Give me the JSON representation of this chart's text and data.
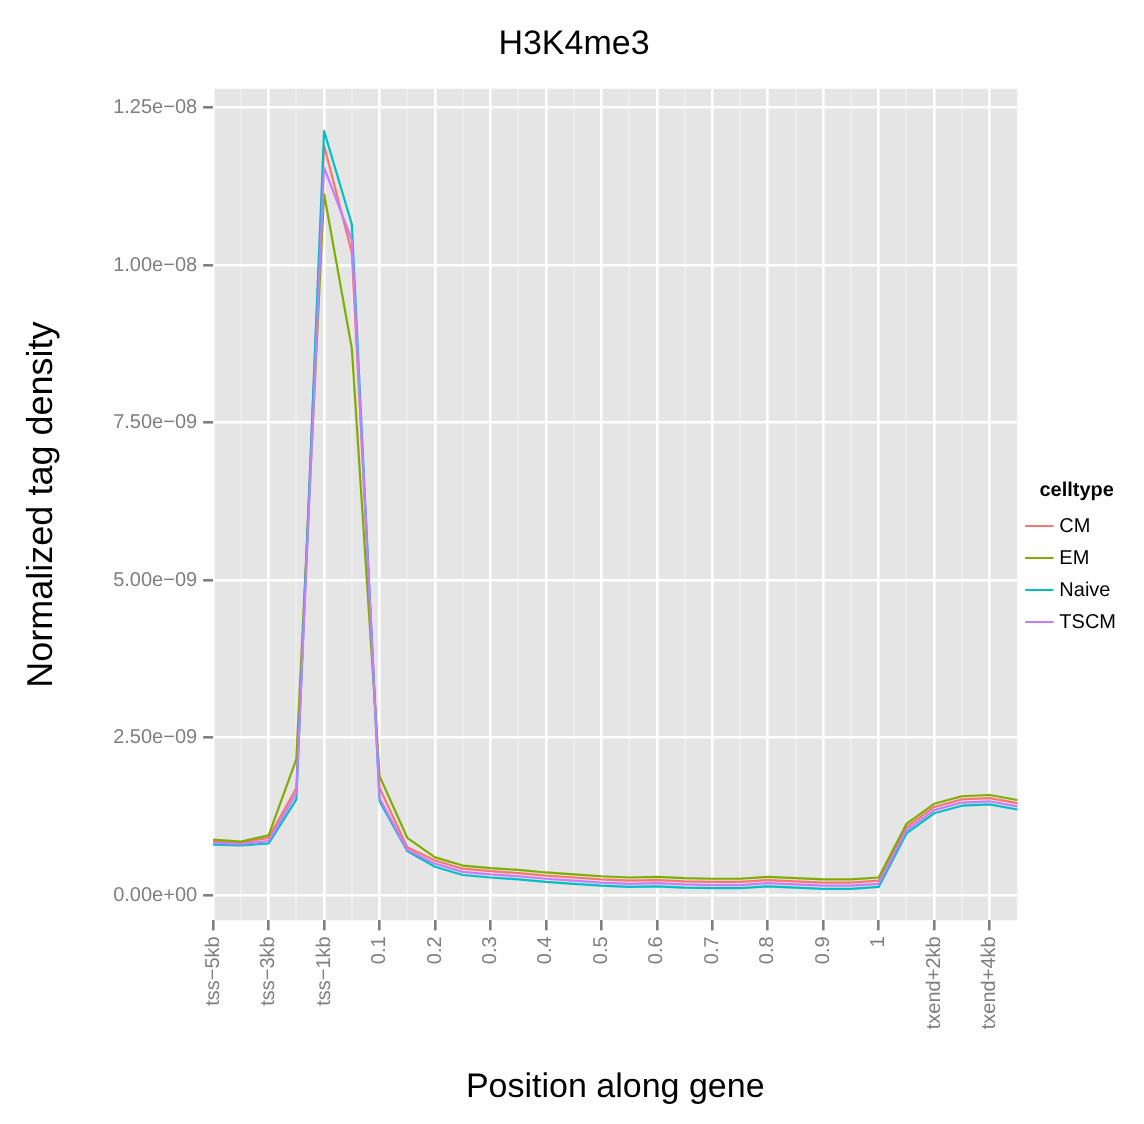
{
  "chart_data": {
    "type": "line",
    "title": "H3K4me3",
    "xlabel": "Position along gene",
    "ylabel": "Normalized tag density",
    "legend_title": "celltype",
    "legend": "right",
    "grid": true,
    "marker": "none",
    "line_style": "solid",
    "categories": [
      "tss−5kb",
      null,
      "tss−3kb",
      null,
      "tss−1kb",
      null,
      "0.1",
      null,
      "0.2",
      null,
      "0.3",
      null,
      "0.4",
      null,
      "0.5",
      null,
      "0.6",
      null,
      "0.7",
      null,
      "0.8",
      null,
      "0.9",
      null,
      "1",
      null,
      "txend+2kb",
      null,
      "txend+4kb",
      null
    ],
    "ylim": [
      -4e-10,
      1.28e-08
    ],
    "yticks": [
      {
        "value": 0,
        "label": "0.00e+00"
      },
      {
        "value": 2.5e-09,
        "label": "2.50e−09"
      },
      {
        "value": 5e-09,
        "label": "5.00e−09"
      },
      {
        "value": 7.5e-09,
        "label": "7.50e−09"
      },
      {
        "value": 1e-08,
        "label": "1.00e−08"
      },
      {
        "value": 1.25e-08,
        "label": "1.25e−08"
      }
    ],
    "series": [
      {
        "name": "CM",
        "color": "#f8766d",
        "values": [
          8.6e-10,
          8.3e-10,
          9.1e-10,
          1.7e-09,
          1.19e-08,
          1.02e-08,
          1.7e-09,
          7.6e-10,
          5.5e-10,
          4.2e-10,
          3.8e-10,
          3.5e-10,
          3.1e-10,
          2.8e-10,
          2.5e-10,
          2.3e-10,
          2.4e-10,
          2.2e-10,
          2.1e-10,
          2.1e-10,
          2.4e-10,
          2.2e-10,
          2e-10,
          2e-10,
          2.3e-10,
          1.08e-09,
          1.4e-09,
          1.52e-09,
          1.54e-09,
          1.46e-09
        ]
      },
      {
        "name": "EM",
        "color": "#7cae00",
        "values": [
          8.8e-10,
          8.5e-10,
          9.5e-10,
          2.16e-09,
          1.113e-08,
          8.68e-09,
          1.89e-09,
          9.1e-10,
          6e-10,
          4.7e-10,
          4.3e-10,
          4e-10,
          3.6e-10,
          3.3e-10,
          3e-10,
          2.8e-10,
          2.9e-10,
          2.7e-10,
          2.6e-10,
          2.6e-10,
          2.9e-10,
          2.7e-10,
          2.5e-10,
          2.5e-10,
          2.8e-10,
          1.13e-09,
          1.45e-09,
          1.57e-09,
          1.59e-09,
          1.51e-09
        ]
      },
      {
        "name": "Naive",
        "color": "#00bfc4",
        "values": [
          8e-10,
          7.9e-10,
          8.2e-10,
          1.52e-09,
          1.213e-08,
          1.065e-08,
          1.49e-09,
          7e-10,
          4.5e-10,
          3.2e-10,
          2.8e-10,
          2.5e-10,
          2.1e-10,
          1.8e-10,
          1.5e-10,
          1.3e-10,
          1.4e-10,
          1.2e-10,
          1.1e-10,
          1.1e-10,
          1.4e-10,
          1.2e-10,
          1e-10,
          1e-10,
          1.3e-10,
          9.8e-10,
          1.3e-09,
          1.42e-09,
          1.44e-09,
          1.36e-09
        ]
      },
      {
        "name": "TSCM",
        "color": "#c77cff",
        "values": [
          8.3e-10,
          8.1e-10,
          8.6e-10,
          1.62e-09,
          1.155e-08,
          1.04e-08,
          1.54e-09,
          7.2e-10,
          5e-10,
          3.7e-10,
          3.3e-10,
          3e-10,
          2.6e-10,
          2.3e-10,
          2e-10,
          1.8e-10,
          1.9e-10,
          1.7e-10,
          1.6e-10,
          1.6e-10,
          1.9e-10,
          1.7e-10,
          1.5e-10,
          1.5e-10,
          1.8e-10,
          1.03e-09,
          1.35e-09,
          1.47e-09,
          1.49e-09,
          1.41e-09
        ]
      }
    ]
  }
}
